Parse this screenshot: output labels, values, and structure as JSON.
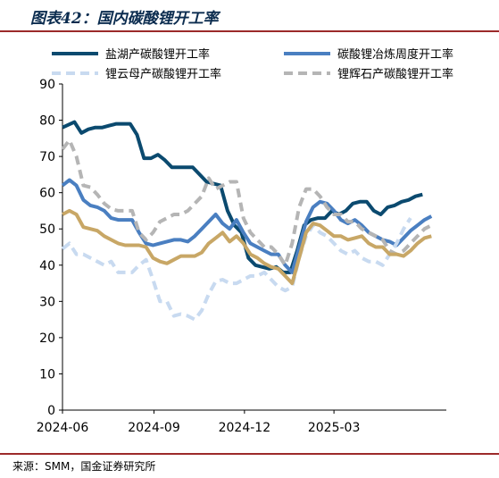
{
  "figure": {
    "title": "图表42：国内碳酸锂开工率",
    "source": "来源：SMM，国金证券研究所"
  },
  "chart_data": {
    "type": "line",
    "title": "",
    "xlabel": "",
    "ylabel": "",
    "ylim": [
      0,
      90
    ],
    "yticks": [
      0,
      10,
      20,
      30,
      40,
      50,
      60,
      70,
      80,
      90
    ],
    "xlim": [
      "2024-06-01",
      "2025-06-22"
    ],
    "xticks": [
      "2024-06",
      "2024-09",
      "2024-12",
      "2025-03"
    ],
    "grid": false,
    "legend": "top, two columns",
    "series": [
      {
        "name": "盐湖产碳酸锂开工率",
        "color": "#0b4a6f",
        "style": "solid",
        "points": [
          [
            "2024-06-01",
            78
          ],
          [
            "2024-06-13",
            79.5
          ],
          [
            "2024-06-20",
            76.5
          ],
          [
            "2024-06-27",
            77.5
          ],
          [
            "2024-07-04",
            78
          ],
          [
            "2024-07-11",
            78
          ],
          [
            "2024-07-18",
            78.5
          ],
          [
            "2024-07-25",
            79
          ],
          [
            "2024-08-01",
            79
          ],
          [
            "2024-08-08",
            79
          ],
          [
            "2024-08-15",
            76
          ],
          [
            "2024-08-22",
            69.5
          ],
          [
            "2024-08-29",
            69.5
          ],
          [
            "2024-09-05",
            70.5
          ],
          [
            "2024-09-12",
            69
          ],
          [
            "2024-09-19",
            67
          ],
          [
            "2024-09-26",
            67
          ],
          [
            "2024-10-03",
            67
          ],
          [
            "2024-10-10",
            67
          ],
          [
            "2024-10-17",
            65
          ],
          [
            "2024-10-24",
            63
          ],
          [
            "2024-10-31",
            62.5
          ],
          [
            "2024-11-07",
            62
          ],
          [
            "2024-11-14",
            55
          ],
          [
            "2024-11-21",
            51
          ],
          [
            "2024-11-28",
            49
          ],
          [
            "2024-12-05",
            42
          ],
          [
            "2024-12-12",
            40
          ],
          [
            "2024-12-19",
            39.5
          ],
          [
            "2024-12-26",
            39
          ],
          [
            "2025-01-02",
            39.5
          ],
          [
            "2025-01-09",
            38
          ],
          [
            "2025-01-16",
            38
          ],
          [
            "2025-01-23",
            44
          ],
          [
            "2025-01-30",
            51
          ],
          [
            "2025-02-06",
            52.5
          ],
          [
            "2025-02-13",
            53
          ],
          [
            "2025-02-20",
            53
          ],
          [
            "2025-02-27",
            55
          ],
          [
            "2025-03-06",
            54
          ],
          [
            "2025-03-13",
            55
          ],
          [
            "2025-03-20",
            57
          ],
          [
            "2025-03-27",
            57.5
          ],
          [
            "2025-04-03",
            57.5
          ],
          [
            "2025-04-10",
            55
          ],
          [
            "2025-04-17",
            54
          ],
          [
            "2025-04-24",
            56
          ],
          [
            "2025-05-01",
            56.5
          ],
          [
            "2025-05-08",
            57.5
          ],
          [
            "2025-05-15",
            58
          ],
          [
            "2025-05-22",
            59
          ],
          [
            "2025-05-29",
            59.5
          ]
        ]
      },
      {
        "name": "碳酸锂冶炼周度开工率",
        "color": "#4a7fc1",
        "style": "solid",
        "points": [
          [
            "2024-06-01",
            62
          ],
          [
            "2024-06-08",
            63.5
          ],
          [
            "2024-06-15",
            62
          ],
          [
            "2024-06-22",
            58
          ],
          [
            "2024-06-29",
            56.5
          ],
          [
            "2024-07-06",
            56
          ],
          [
            "2024-07-13",
            55
          ],
          [
            "2024-07-20",
            53
          ],
          [
            "2024-07-27",
            52.5
          ],
          [
            "2024-08-03",
            52.5
          ],
          [
            "2024-08-10",
            52.5
          ],
          [
            "2024-08-17",
            49
          ],
          [
            "2024-08-24",
            46
          ],
          [
            "2024-08-31",
            45.5
          ],
          [
            "2024-09-07",
            46
          ],
          [
            "2024-09-14",
            46.5
          ],
          [
            "2024-09-21",
            47
          ],
          [
            "2024-09-28",
            47
          ],
          [
            "2024-10-05",
            46.5
          ],
          [
            "2024-10-12",
            48
          ],
          [
            "2024-10-19",
            50
          ],
          [
            "2024-10-26",
            52
          ],
          [
            "2024-11-02",
            54
          ],
          [
            "2024-11-09",
            51.5
          ],
          [
            "2024-11-16",
            50
          ],
          [
            "2024-11-23",
            52.5
          ],
          [
            "2024-11-30",
            49
          ],
          [
            "2024-12-07",
            46
          ],
          [
            "2024-12-14",
            45
          ],
          [
            "2024-12-21",
            44
          ],
          [
            "2024-12-28",
            43
          ],
          [
            "2025-01-04",
            43
          ],
          [
            "2025-01-11",
            40
          ],
          [
            "2025-01-18",
            38
          ],
          [
            "2025-01-25",
            45
          ],
          [
            "2025-02-01",
            52
          ],
          [
            "2025-02-08",
            56
          ],
          [
            "2025-02-15",
            57.5
          ],
          [
            "2025-02-22",
            57
          ],
          [
            "2025-03-01",
            55
          ],
          [
            "2025-03-08",
            52.5
          ],
          [
            "2025-03-15",
            51.5
          ],
          [
            "2025-03-22",
            52.5
          ],
          [
            "2025-03-29",
            51
          ],
          [
            "2025-04-05",
            49
          ],
          [
            "2025-04-12",
            48
          ],
          [
            "2025-04-19",
            47
          ],
          [
            "2025-04-26",
            46.5
          ],
          [
            "2025-05-03",
            45.5
          ],
          [
            "2025-05-10",
            47.5
          ],
          [
            "2025-05-17",
            49.5
          ],
          [
            "2025-05-24",
            51
          ],
          [
            "2025-05-31",
            52.5
          ],
          [
            "2025-06-07",
            53.5
          ]
        ]
      },
      {
        "name": "锂云母产碳酸锂开工率",
        "color": "#c8daf0",
        "style": "dashed",
        "points": [
          [
            "2024-06-01",
            44.5
          ],
          [
            "2024-06-08",
            46
          ],
          [
            "2024-06-15",
            43
          ],
          [
            "2024-06-22",
            43
          ],
          [
            "2024-07-06",
            41
          ],
          [
            "2024-07-13",
            40
          ],
          [
            "2024-07-20",
            41
          ],
          [
            "2024-07-27",
            38
          ],
          [
            "2024-08-03",
            38
          ],
          [
            "2024-08-10",
            38
          ],
          [
            "2024-08-17",
            40
          ],
          [
            "2024-08-24",
            41.5
          ],
          [
            "2024-08-31",
            36
          ],
          [
            "2024-09-07",
            30
          ],
          [
            "2024-09-14",
            30
          ],
          [
            "2024-09-21",
            26
          ],
          [
            "2024-09-28",
            26.5
          ],
          [
            "2024-10-05",
            26
          ],
          [
            "2024-10-12",
            25
          ],
          [
            "2024-10-19",
            27.5
          ],
          [
            "2024-10-26",
            32
          ],
          [
            "2024-11-02",
            35.5
          ],
          [
            "2024-11-09",
            36
          ],
          [
            "2024-11-16",
            35
          ],
          [
            "2024-11-23",
            35
          ],
          [
            "2024-11-30",
            36
          ],
          [
            "2024-12-07",
            37
          ],
          [
            "2024-12-14",
            37
          ],
          [
            "2024-12-21",
            38
          ],
          [
            "2024-12-28",
            36
          ],
          [
            "2025-01-04",
            34
          ],
          [
            "2025-01-11",
            33
          ],
          [
            "2025-01-18",
            34
          ],
          [
            "2025-01-25",
            42
          ],
          [
            "2025-02-01",
            48
          ],
          [
            "2025-02-08",
            51
          ],
          [
            "2025-02-15",
            49
          ],
          [
            "2025-02-22",
            48
          ],
          [
            "2025-03-01",
            46
          ],
          [
            "2025-03-08",
            44
          ],
          [
            "2025-03-15",
            43
          ],
          [
            "2025-03-22",
            44
          ],
          [
            "2025-03-29",
            42
          ],
          [
            "2025-04-05",
            41
          ],
          [
            "2025-04-12",
            41
          ],
          [
            "2025-04-19",
            40
          ],
          [
            "2025-04-26",
            43
          ],
          [
            "2025-05-03",
            46
          ],
          [
            "2025-05-10",
            50
          ],
          [
            "2025-05-17",
            53
          ]
        ]
      },
      {
        "name": "锂辉石产碳酸锂开工率",
        "color": "#b5b5b5",
        "style": "dashed",
        "points": [
          [
            "2024-06-01",
            72
          ],
          [
            "2024-06-08",
            74.5
          ],
          [
            "2024-06-15",
            70
          ],
          [
            "2024-06-22",
            62
          ],
          [
            "2024-06-29",
            61.5
          ],
          [
            "2024-07-06",
            59.5
          ],
          [
            "2024-07-13",
            57
          ],
          [
            "2024-07-20",
            55.5
          ],
          [
            "2024-07-27",
            55
          ],
          [
            "2024-08-03",
            55
          ],
          [
            "2024-08-10",
            55
          ],
          [
            "2024-08-17",
            49
          ],
          [
            "2024-08-24",
            47
          ],
          [
            "2024-08-31",
            49
          ],
          [
            "2024-09-07",
            52
          ],
          [
            "2024-09-14",
            53
          ],
          [
            "2024-09-21",
            54
          ],
          [
            "2024-09-28",
            54
          ],
          [
            "2024-10-05",
            55
          ],
          [
            "2024-10-12",
            57
          ],
          [
            "2024-10-19",
            59
          ],
          [
            "2024-10-26",
            64
          ],
          [
            "2024-11-02",
            61
          ],
          [
            "2024-11-09",
            62
          ],
          [
            "2024-11-16",
            63
          ],
          [
            "2024-11-23",
            63
          ],
          [
            "2024-11-30",
            53
          ],
          [
            "2024-12-07",
            49
          ],
          [
            "2024-12-14",
            47
          ],
          [
            "2024-12-21",
            45
          ],
          [
            "2024-12-28",
            45
          ],
          [
            "2025-01-04",
            43
          ],
          [
            "2025-01-11",
            40
          ],
          [
            "2025-01-18",
            46
          ],
          [
            "2025-01-25",
            56
          ],
          [
            "2025-02-01",
            61
          ],
          [
            "2025-02-08",
            61
          ],
          [
            "2025-02-15",
            59
          ],
          [
            "2025-02-22",
            56
          ],
          [
            "2025-03-01",
            54
          ],
          [
            "2025-03-08",
            54
          ],
          [
            "2025-03-15",
            52
          ],
          [
            "2025-03-22",
            52
          ],
          [
            "2025-03-29",
            50
          ],
          [
            "2025-04-05",
            49
          ],
          [
            "2025-04-12",
            48
          ],
          [
            "2025-04-19",
            47
          ],
          [
            "2025-04-26",
            44
          ],
          [
            "2025-05-03",
            43
          ],
          [
            "2025-05-10",
            44
          ],
          [
            "2025-05-17",
            46
          ],
          [
            "2025-05-24",
            48
          ],
          [
            "2025-05-31",
            50
          ],
          [
            "2025-06-07",
            51
          ]
        ]
      },
      {
        "name": "",
        "color": "#c8a766",
        "style": "solid",
        "points": [
          [
            "2024-06-01",
            54
          ],
          [
            "2024-06-08",
            55
          ],
          [
            "2024-06-15",
            54
          ],
          [
            "2024-06-22",
            50.5
          ],
          [
            "2024-06-29",
            50
          ],
          [
            "2024-07-06",
            49.5
          ],
          [
            "2024-07-13",
            48
          ],
          [
            "2024-07-20",
            47
          ],
          [
            "2024-07-27",
            46
          ],
          [
            "2024-08-03",
            45.5
          ],
          [
            "2024-08-10",
            45.5
          ],
          [
            "2024-08-17",
            45.5
          ],
          [
            "2024-08-24",
            45
          ],
          [
            "2024-08-31",
            42
          ],
          [
            "2024-09-07",
            41
          ],
          [
            "2024-09-14",
            40.5
          ],
          [
            "2024-09-21",
            41.5
          ],
          [
            "2024-09-28",
            42.5
          ],
          [
            "2024-10-05",
            42.5
          ],
          [
            "2024-10-12",
            42.5
          ],
          [
            "2024-10-19",
            43.5
          ],
          [
            "2024-10-26",
            46
          ],
          [
            "2024-11-02",
            47.5
          ],
          [
            "2024-11-09",
            49
          ],
          [
            "2024-11-16",
            46.5
          ],
          [
            "2024-11-23",
            48
          ],
          [
            "2024-11-30",
            46
          ],
          [
            "2024-12-07",
            43
          ],
          [
            "2024-12-14",
            42
          ],
          [
            "2024-12-21",
            40.5
          ],
          [
            "2024-12-28",
            39.5
          ],
          [
            "2025-01-04",
            39
          ],
          [
            "2025-01-11",
            37
          ],
          [
            "2025-01-18",
            35
          ],
          [
            "2025-01-25",
            42
          ],
          [
            "2025-02-01",
            49
          ],
          [
            "2025-02-08",
            51.5
          ],
          [
            "2025-02-15",
            51
          ],
          [
            "2025-02-22",
            49.5
          ],
          [
            "2025-03-01",
            48
          ],
          [
            "2025-03-08",
            48
          ],
          [
            "2025-03-15",
            47
          ],
          [
            "2025-03-22",
            47.5
          ],
          [
            "2025-03-29",
            48
          ],
          [
            "2025-04-05",
            46
          ],
          [
            "2025-04-12",
            45
          ],
          [
            "2025-04-19",
            45
          ],
          [
            "2025-04-26",
            43
          ],
          [
            "2025-05-03",
            43
          ],
          [
            "2025-05-10",
            42.5
          ],
          [
            "2025-05-17",
            44
          ],
          [
            "2025-05-24",
            46
          ],
          [
            "2025-05-31",
            47.5
          ],
          [
            "2025-06-07",
            48
          ]
        ]
      }
    ]
  }
}
